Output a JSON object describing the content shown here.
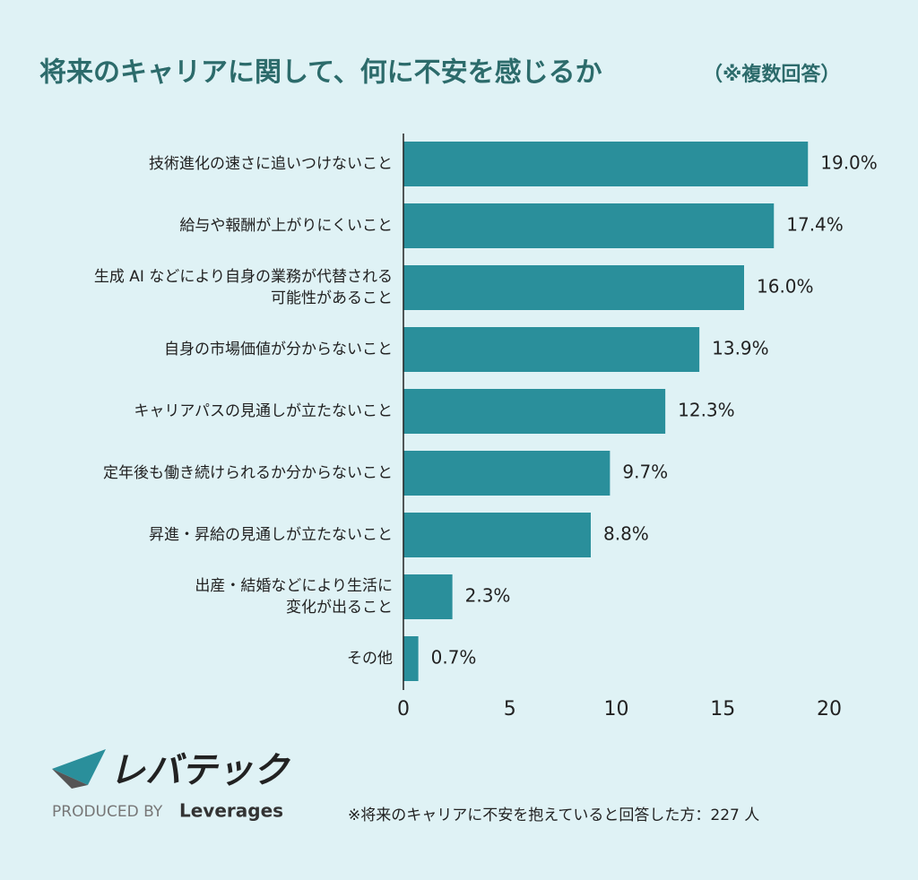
{
  "chart_data": {
    "type": "bar",
    "orientation": "horizontal",
    "title": "将来のキャリアに関して、何に不安を感じるか",
    "title_note": "（※複数回答）",
    "categories": [
      [
        "技術進化の速さに追いつけないこと"
      ],
      [
        "給与や報酬が上がりにくいこと"
      ],
      [
        "生成 AI などにより自身の業務が代替される",
        "可能性があること"
      ],
      [
        "自身の市場価値が分からないこと"
      ],
      [
        "キャリアパスの見通しが立たないこと"
      ],
      [
        "定年後も働き続けられるか分からないこと"
      ],
      [
        "昇進・昇給の見通しが立たないこと"
      ],
      [
        "出産・結婚などにより生活に",
        "変化が出ること"
      ],
      [
        "その他"
      ]
    ],
    "values": [
      19.0,
      17.4,
      16.0,
      13.9,
      12.3,
      9.7,
      8.8,
      2.3,
      0.7
    ],
    "value_labels": [
      "19.0%",
      "17.4%",
      "16.0%",
      "13.9%",
      "12.3%",
      "9.7%",
      "8.8%",
      "2.3%",
      "0.7%"
    ],
    "color": "#2a8f9b",
    "xlim": [
      0,
      20
    ],
    "xticks": [
      0,
      5,
      10,
      15,
      20
    ],
    "grid": false
  },
  "logo": {
    "name": "レバテック",
    "produced_by": "PRODUCED BY",
    "company": "Leverages"
  },
  "note": "※将来のキャリアに不安を抱えていると回答した方：227 人"
}
